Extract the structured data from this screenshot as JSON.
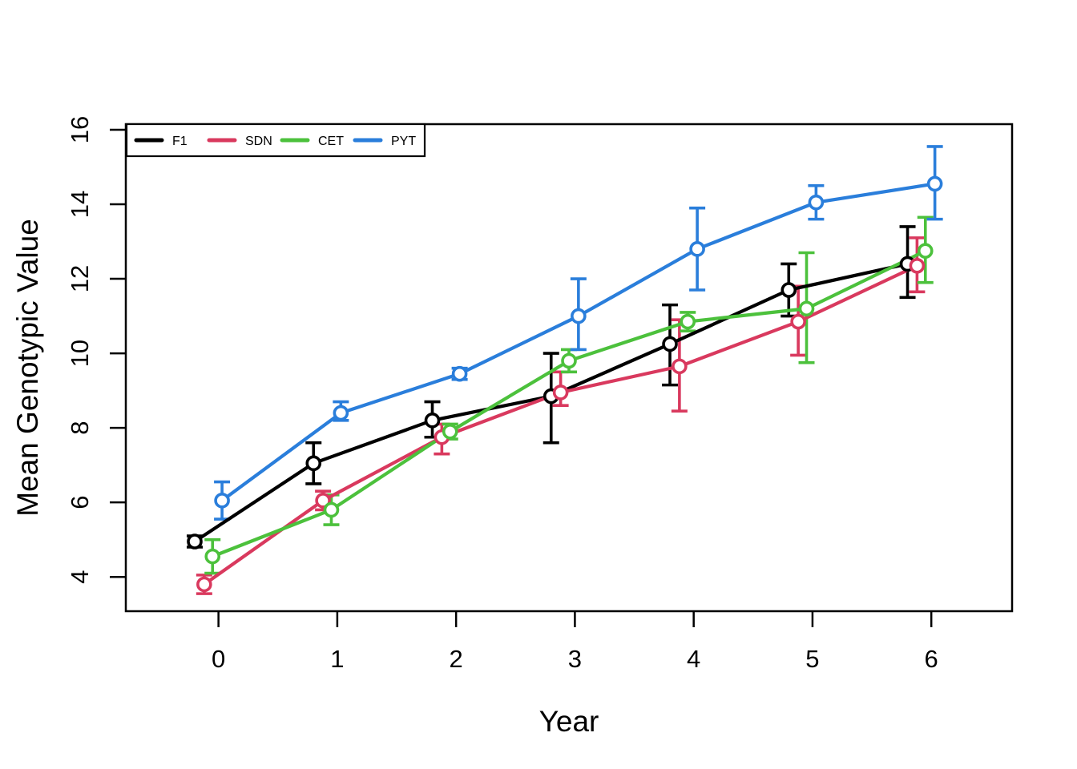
{
  "figure": {
    "background": "#ffffff"
  },
  "chart_data": {
    "type": "line",
    "title": "",
    "xlabel": "Year",
    "ylabel": "Mean Genotypic Value",
    "x": [
      0,
      1,
      2,
      3,
      4,
      5,
      6
    ],
    "x_ticks": [
      0,
      1,
      2,
      3,
      4,
      5,
      6
    ],
    "y_ticks": [
      4,
      6,
      8,
      10,
      12,
      14,
      16
    ],
    "xlim": [
      -0.78,
      6.68
    ],
    "ylim": [
      3.08,
      16.15
    ],
    "grid": false,
    "marker": "open-circle",
    "error_bars": true,
    "legend_position": "top-left-inside",
    "series": [
      {
        "name": "F1",
        "color": "#000000",
        "x_offset": -0.2,
        "values": [
          4.95,
          7.05,
          8.2,
          8.85,
          10.25,
          11.7,
          12.4
        ],
        "lower": [
          4.8,
          6.5,
          7.75,
          7.6,
          9.15,
          11.0,
          11.5
        ],
        "upper": [
          5.1,
          7.6,
          8.7,
          10.0,
          11.3,
          12.4,
          13.4
        ]
      },
      {
        "name": "SDN",
        "color": "#D9395E",
        "x_offset": -0.12,
        "values": [
          3.8,
          6.05,
          7.75,
          8.95,
          9.65,
          10.85,
          12.35
        ],
        "lower": [
          3.55,
          5.8,
          7.3,
          8.6,
          8.45,
          9.95,
          11.65
        ],
        "upper": [
          4.05,
          6.3,
          8.1,
          9.5,
          10.9,
          11.8,
          13.1
        ]
      },
      {
        "name": "CET",
        "color": "#4CC13C",
        "x_offset": -0.05,
        "values": [
          4.55,
          5.8,
          7.9,
          9.8,
          10.85,
          11.2,
          12.75
        ],
        "lower": [
          4.1,
          5.4,
          7.7,
          9.5,
          10.6,
          9.75,
          11.9
        ],
        "upper": [
          5.0,
          6.2,
          8.1,
          10.1,
          11.1,
          12.7,
          13.65
        ]
      },
      {
        "name": "PYT",
        "color": "#2A7EDB",
        "x_offset": 0.03,
        "values": [
          6.05,
          8.4,
          9.45,
          11.0,
          12.8,
          14.05,
          14.55
        ],
        "lower": [
          5.55,
          8.2,
          9.3,
          10.1,
          11.7,
          13.6,
          13.6
        ],
        "upper": [
          6.55,
          8.7,
          9.6,
          12.0,
          13.9,
          14.5,
          15.55
        ]
      }
    ]
  }
}
